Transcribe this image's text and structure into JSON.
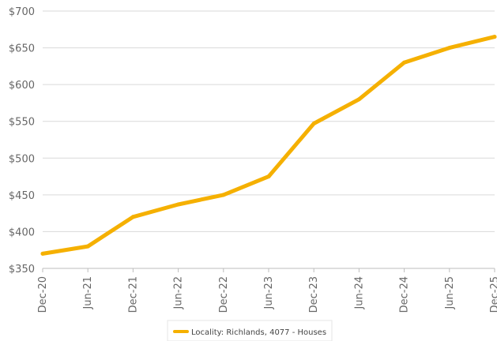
{
  "chart_data": {
    "type": "line",
    "title": "",
    "xlabel": "",
    "ylabel": "",
    "categories": [
      "Dec-20",
      "Jun-21",
      "Dec-21",
      "Jun-22",
      "Dec-22",
      "Jun-23",
      "Dec-23",
      "Jun-24",
      "Dec-24",
      "Jun-25",
      "Dec-25"
    ],
    "y_ticks": [
      "$350",
      "$400",
      "$450",
      "$500",
      "$550",
      "$600",
      "$650",
      "$700"
    ],
    "ylim": [
      350,
      700
    ],
    "grid": true,
    "legend_position": "bottom-center",
    "series": [
      {
        "name": "Locality: Richlands, 4077 - Houses",
        "color": "#f5b000",
        "values": [
          370,
          380,
          420,
          437,
          450,
          475,
          547,
          580,
          630,
          650,
          665
        ]
      }
    ]
  }
}
